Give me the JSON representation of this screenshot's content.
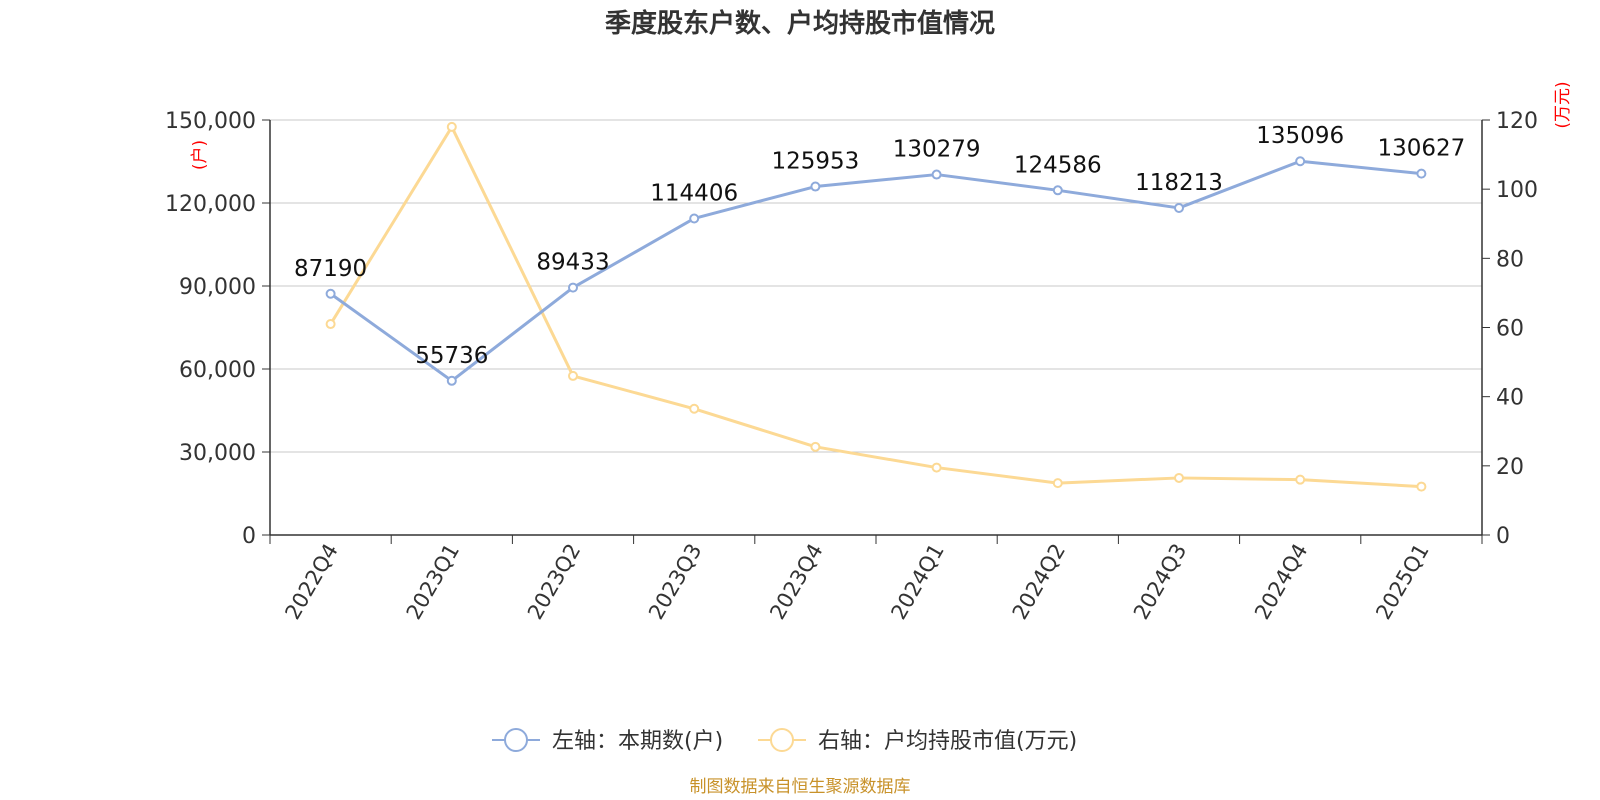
{
  "chart_data": {
    "type": "line",
    "title": "季度股东户数、户均持股市值情况",
    "categories": [
      "2022Q4",
      "2023Q1",
      "2023Q2",
      "2023Q3",
      "2023Q4",
      "2024Q1",
      "2024Q2",
      "2024Q3",
      "2024Q4",
      "2025Q1"
    ],
    "series": [
      {
        "name": "左轴：本期数(户)",
        "axis": "left",
        "color": "#8eaadb",
        "values": [
          87190,
          55736,
          89433,
          114406,
          125953,
          130279,
          124586,
          118213,
          135096,
          130627
        ],
        "labels": [
          "87190",
          "55736",
          "89433",
          "114406",
          "125953",
          "130279",
          "124586",
          "118213",
          "135096",
          "130627"
        ]
      },
      {
        "name": "右轴：户均持股市值(万元)",
        "axis": "right",
        "color": "#fcd994",
        "values": [
          61,
          118,
          46,
          36.5,
          25.5,
          19.5,
          15,
          16.5,
          16,
          14
        ]
      }
    ],
    "left_axis": {
      "unit": "(户)",
      "ylim": [
        0,
        150000
      ],
      "ticks": [
        0,
        30000,
        60000,
        90000,
        120000,
        150000
      ],
      "tick_labels": [
        "0",
        "30,000",
        "60,000",
        "90,000",
        "120,000",
        "150,000"
      ]
    },
    "right_axis": {
      "unit": "(万元)",
      "ylim": [
        0,
        120
      ],
      "ticks": [
        0,
        20,
        40,
        60,
        80,
        100,
        120
      ],
      "tick_labels": [
        "0",
        "20",
        "40",
        "60",
        "80",
        "100",
        "120"
      ]
    },
    "grid": true,
    "legend_position": "bottom-center",
    "source": "制图数据来自恒生聚源数据库"
  }
}
